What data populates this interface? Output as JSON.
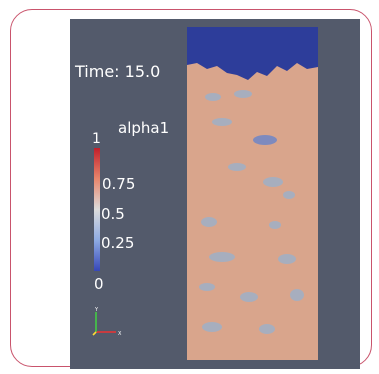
{
  "viewport": {
    "time_label": "Time: 15.0"
  },
  "legend": {
    "title": "alpha1",
    "ticks": {
      "max": "1",
      "t075": "0.75",
      "t05": "0.5",
      "t025": "0.25",
      "min": "0"
    }
  },
  "colors": {
    "background": "#535a6b",
    "liquid": "#d9a58c",
    "gas": "#2d3d9a",
    "bubbles": "#9fb0c7",
    "frame": "#c9546c"
  },
  "icons": [
    "orientation-axes-icon"
  ]
}
